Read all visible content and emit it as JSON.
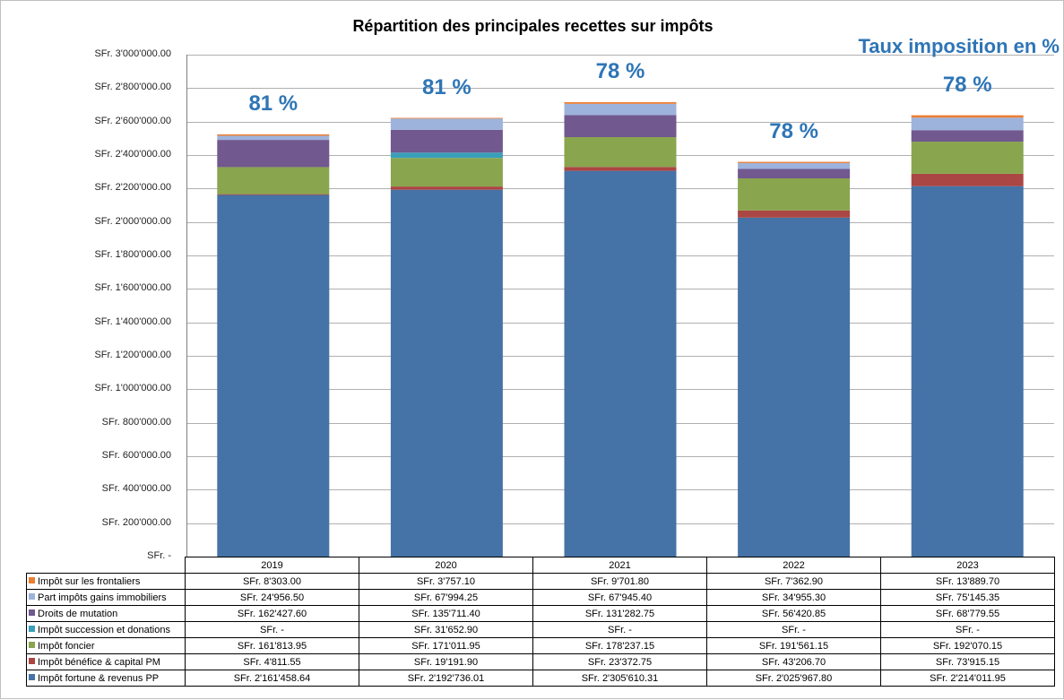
{
  "chart_data": {
    "type": "bar",
    "stacked": true,
    "title": "Répartition des principales recettes sur impôts",
    "categories": [
      "2019",
      "2020",
      "2021",
      "2022",
      "2023"
    ],
    "ylim": [
      0,
      3000000
    ],
    "yticks": [
      {
        "value": 3000000,
        "label": "SFr. 3'000'000.00"
      },
      {
        "value": 2800000,
        "label": "SFr. 2'800'000.00"
      },
      {
        "value": 2600000,
        "label": "SFr. 2'600'000.00"
      },
      {
        "value": 2400000,
        "label": "SFr. 2'400'000.00"
      },
      {
        "value": 2200000,
        "label": "SFr. 2'200'000.00"
      },
      {
        "value": 2000000,
        "label": "SFr. 2'000'000.00"
      },
      {
        "value": 1800000,
        "label": "SFr. 1'800'000.00"
      },
      {
        "value": 1600000,
        "label": "SFr. 1'600'000.00"
      },
      {
        "value": 1400000,
        "label": "SFr. 1'400'000.00"
      },
      {
        "value": 1200000,
        "label": "SFr. 1'200'000.00"
      },
      {
        "value": 1000000,
        "label": "SFr. 1'000'000.00"
      },
      {
        "value": 800000,
        "label": "SFr. 800'000.00"
      },
      {
        "value": 600000,
        "label": "SFr. 600'000.00"
      },
      {
        "value": 400000,
        "label": "SFr. 400'000.00"
      },
      {
        "value": 200000,
        "label": "SFr. 200'000.00"
      },
      {
        "value": 0,
        "label": "SFr. -"
      }
    ],
    "grid": true,
    "legend": "data-table",
    "series": [
      {
        "name": "Impôt sur les frontaliers",
        "color": "#ed7d31",
        "values": [
          8303.0,
          3757.1,
          9701.8,
          7362.9,
          13889.7
        ],
        "labels": [
          "SFr. 8'303.00",
          "SFr. 3'757.10",
          "SFr. 9'701.80",
          "SFr. 7'362.90",
          "SFr. 13'889.70"
        ]
      },
      {
        "name": "Part impôts gains immobiliers",
        "color": "#9db3dc",
        "values": [
          24956.5,
          67994.25,
          67945.4,
          34955.3,
          75145.35
        ],
        "labels": [
          "SFr. 24'956.50",
          "SFr. 67'994.25",
          "SFr. 67'945.40",
          "SFr. 34'955.30",
          "SFr. 75'145.35"
        ]
      },
      {
        "name": "Droits de mutation",
        "color": "#71588f",
        "values": [
          162427.6,
          135711.4,
          131282.75,
          56420.85,
          68779.55
        ],
        "labels": [
          "SFr. 162'427.60",
          "SFr. 135'711.40",
          "SFr. 131'282.75",
          "SFr. 56'420.85",
          "SFr. 68'779.55"
        ]
      },
      {
        "name": "Impôt succession et donations",
        "color": "#3a9fb9",
        "values": [
          0,
          31652.9,
          0,
          0,
          0
        ],
        "labels": [
          "SFr. -",
          "SFr. 31'652.90",
          "SFr. -",
          "SFr. -",
          "SFr. -"
        ]
      },
      {
        "name": "Impôt foncier",
        "color": "#89a54e",
        "values": [
          161813.95,
          171011.95,
          178237.15,
          191561.15,
          192070.15
        ],
        "labels": [
          "SFr. 161'813.95",
          "SFr. 171'011.95",
          "SFr. 178'237.15",
          "SFr. 191'561.15",
          "SFr. 192'070.15"
        ]
      },
      {
        "name": "Impôt bénéfice & capital PM",
        "color": "#aa4643",
        "values": [
          4811.55,
          19191.9,
          23372.75,
          43206.7,
          73915.15
        ],
        "labels": [
          "SFr. 4'811.55",
          "SFr. 19'191.90",
          "SFr. 23'372.75",
          "SFr. 43'206.70",
          "SFr. 73'915.15"
        ]
      },
      {
        "name": "Impôt fortune & revenus PP",
        "color": "#4572a7",
        "values": [
          2161458.64,
          2192736.01,
          2305610.31,
          2025967.8,
          2214011.95
        ],
        "labels": [
          "SFr. 2'161'458.64",
          "SFr. 2'192'736.01",
          "SFr. 2'305'610.31",
          "SFr. 2'025'967.80",
          "SFr. 2'214'011.95"
        ]
      }
    ],
    "annotations": {
      "header": "Taux imposition en %",
      "rates": [
        "81 %",
        "81 %",
        "78 %",
        "78 %",
        "78 %"
      ]
    }
  }
}
